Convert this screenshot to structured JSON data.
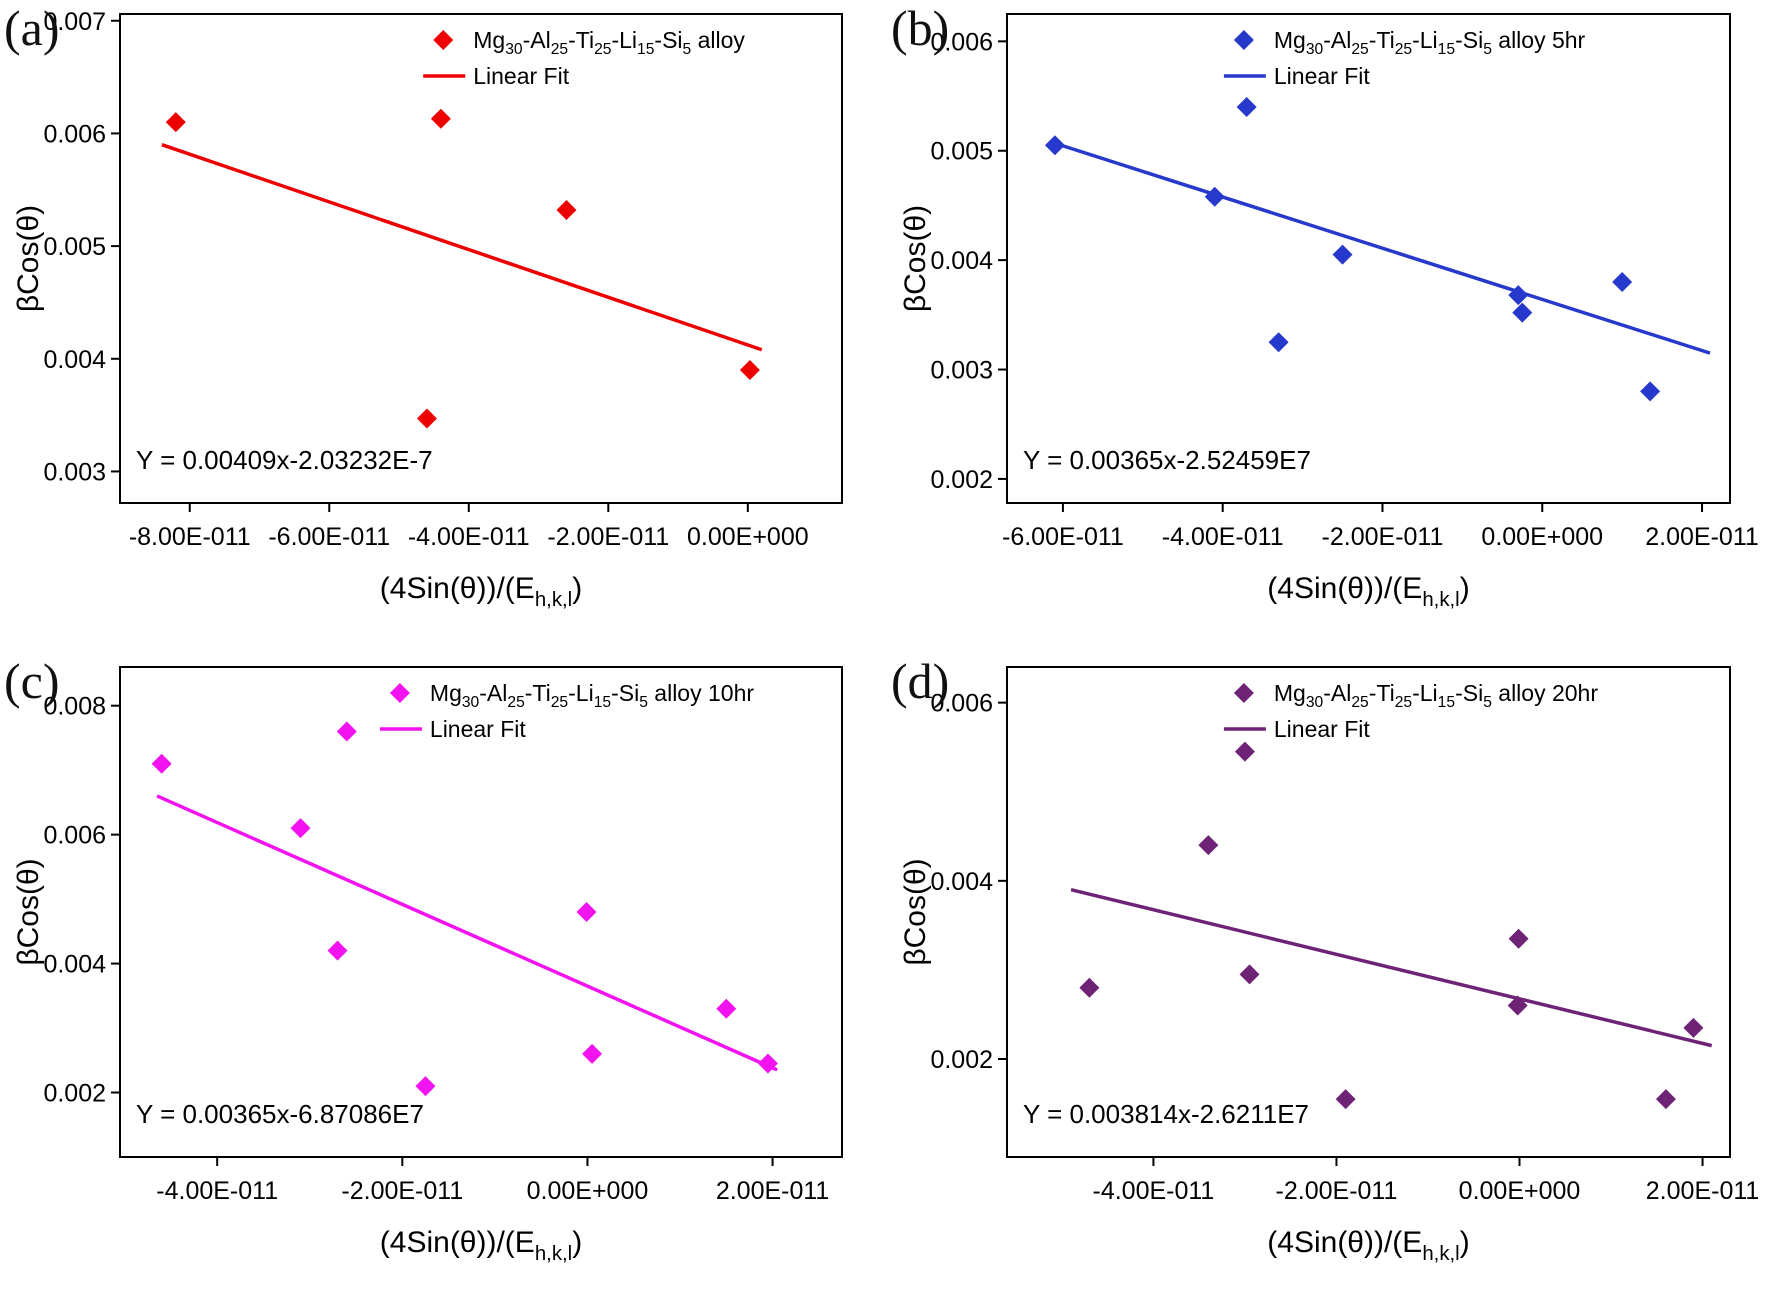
{
  "figure": {
    "background": "#ffffff"
  },
  "chart_data": [
    {
      "id": "a",
      "type": "scatter",
      "panel_label": "(a)",
      "color": "#ee0000",
      "legend_series": "Mg~30~-Al~25~-Ti~25~-Li~15~-Si~5~ alloy",
      "legend_fit": "Linear Fit",
      "equation": "Y = 0.00409x-2.03232E-7",
      "xlabel": "(4Sin(θ))/(E~h,k,l~)",
      "ylabel": "βCos(θ)",
      "xlim": [
        -9e-11,
        1.35e-11
      ],
      "ylim": [
        0.00272,
        0.00706
      ],
      "xticks": [
        -8e-11,
        -6e-11,
        -4e-11,
        -2e-11,
        0
      ],
      "xtick_labels": [
        "-8.00E-011",
        "-6.00E-011",
        "-4.00E-011",
        "-2.00E-011",
        "0.00E+000"
      ],
      "yticks": [
        0.003,
        0.004,
        0.005,
        0.006,
        0.007
      ],
      "ytick_labels": [
        "0.003",
        "0.004",
        "0.005",
        "0.006",
        "0.007"
      ],
      "points": [
        [
          -8.2e-11,
          0.0061
        ],
        [
          -4.4e-11,
          0.00613
        ],
        [
          -2.6e-11,
          0.00532
        ],
        [
          -4.6e-11,
          0.00347
        ],
        [
          3e-13,
          0.0039
        ]
      ],
      "fit_line": {
        "x1": -8.4e-11,
        "y1": 0.0059,
        "x2": 2e-12,
        "y2": 0.00408
      },
      "legend_x_frac": 0.42
    },
    {
      "id": "b",
      "type": "scatter",
      "panel_label": "(b)",
      "color": "#2639cc",
      "legend_series": "Mg~30~-Al~25~-Ti~25~-Li~15~-Si~5~ alloy 5hr",
      "legend_fit": "Linear Fit",
      "equation": "Y = 0.00365x-2.52459E7",
      "xlabel": "(4Sin(θ))/(E~h,k,l~)",
      "ylabel": "βCos(θ)",
      "xlim": [
        -6.7e-11,
        2.35e-11
      ],
      "ylim": [
        0.00178,
        0.00625
      ],
      "xticks": [
        -6e-11,
        -4e-11,
        -2e-11,
        0,
        2e-11
      ],
      "xtick_labels": [
        "-6.00E-011",
        "-4.00E-011",
        "-2.00E-011",
        "0.00E+000",
        "2.00E-011"
      ],
      "yticks": [
        0.002,
        0.003,
        0.004,
        0.005,
        0.006
      ],
      "ytick_labels": [
        "0.002",
        "0.003",
        "0.004",
        "0.005",
        "0.006"
      ],
      "points": [
        [
          -6.1e-11,
          0.00505
        ],
        [
          -4.1e-11,
          0.00458
        ],
        [
          -3.7e-11,
          0.0054
        ],
        [
          -3.3e-11,
          0.00325
        ],
        [
          -2.5e-11,
          0.00405
        ],
        [
          -3e-12,
          0.00368
        ],
        [
          -2.5e-12,
          0.00352
        ],
        [
          1e-11,
          0.0038
        ],
        [
          1.35e-11,
          0.0028
        ]
      ],
      "fit_line": {
        "x1": -6.15e-11,
        "y1": 0.00508,
        "x2": 2.1e-11,
        "y2": 0.00315
      },
      "legend_x_frac": 0.3
    },
    {
      "id": "c",
      "type": "scatter",
      "panel_label": "(c)",
      "color": "#f313f0",
      "legend_series": "Mg~30~-Al~25~-Ti~25~-Li~15~-Si~5~ alloy 10hr",
      "legend_fit": "Linear Fit",
      "equation": "Y = 0.00365x-6.87086E7",
      "xlabel": "(4Sin(θ))/(E~h,k,l~)",
      "ylabel": "βCos(θ)",
      "xlim": [
        -5.05e-11,
        2.75e-11
      ],
      "ylim": [
        0.001,
        0.0086
      ],
      "xticks": [
        -4e-11,
        -2e-11,
        0,
        2e-11
      ],
      "xtick_labels": [
        "-4.00E-011",
        "-2.00E-011",
        "0.00E+000",
        "2.00E-011"
      ],
      "yticks": [
        0.002,
        0.004,
        0.006,
        0.008
      ],
      "ytick_labels": [
        "0.002",
        "0.004",
        "0.006",
        "0.008"
      ],
      "points": [
        [
          -4.6e-11,
          0.0071
        ],
        [
          -3.1e-11,
          0.0061
        ],
        [
          -2.6e-11,
          0.0076
        ],
        [
          -2.7e-11,
          0.0042
        ],
        [
          -1e-13,
          0.0048
        ],
        [
          5e-13,
          0.0026
        ],
        [
          -1.75e-11,
          0.0021
        ],
        [
          1.5e-11,
          0.0033
        ],
        [
          1.95e-11,
          0.00245
        ]
      ],
      "fit_line": {
        "x1": -4.65e-11,
        "y1": 0.0066,
        "x2": 2.05e-11,
        "y2": 0.00235
      },
      "legend_x_frac": 0.36
    },
    {
      "id": "d",
      "type": "scatter",
      "panel_label": "(d)",
      "color": "#6e2377",
      "legend_series": "Mg~30~-Al~25~-Ti~25~-Li~15~-Si~5~ alloy 20hr",
      "legend_fit": "Linear Fit",
      "equation": "Y = 0.003814x-2.6211E7",
      "xlabel": "(4Sin(θ))/(E~h,k,l~)",
      "ylabel": "βCos(θ)",
      "xlim": [
        -5.6e-11,
        2.3e-11
      ],
      "ylim": [
        0.0009,
        0.0064
      ],
      "xticks": [
        -4e-11,
        -2e-11,
        0,
        2e-11
      ],
      "xtick_labels": [
        "-4.00E-011",
        "-2.00E-011",
        "0.00E+000",
        "2.00E-011"
      ],
      "yticks": [
        0.002,
        0.004,
        0.006
      ],
      "ytick_labels": [
        "0.002",
        "0.004",
        "0.006"
      ],
      "points": [
        [
          -4.7e-11,
          0.0028
        ],
        [
          -3.4e-11,
          0.0044
        ],
        [
          -3e-11,
          0.00545
        ],
        [
          -2.95e-11,
          0.00295
        ],
        [
          -1.9e-11,
          0.00155
        ],
        [
          -1e-13,
          0.00335
        ],
        [
          -2e-13,
          0.0026
        ],
        [
          1.6e-11,
          0.00155
        ],
        [
          1.9e-11,
          0.00235
        ]
      ],
      "fit_line": {
        "x1": -4.9e-11,
        "y1": 0.0039,
        "x2": 2.1e-11,
        "y2": 0.00215
      },
      "legend_x_frac": 0.3
    }
  ]
}
